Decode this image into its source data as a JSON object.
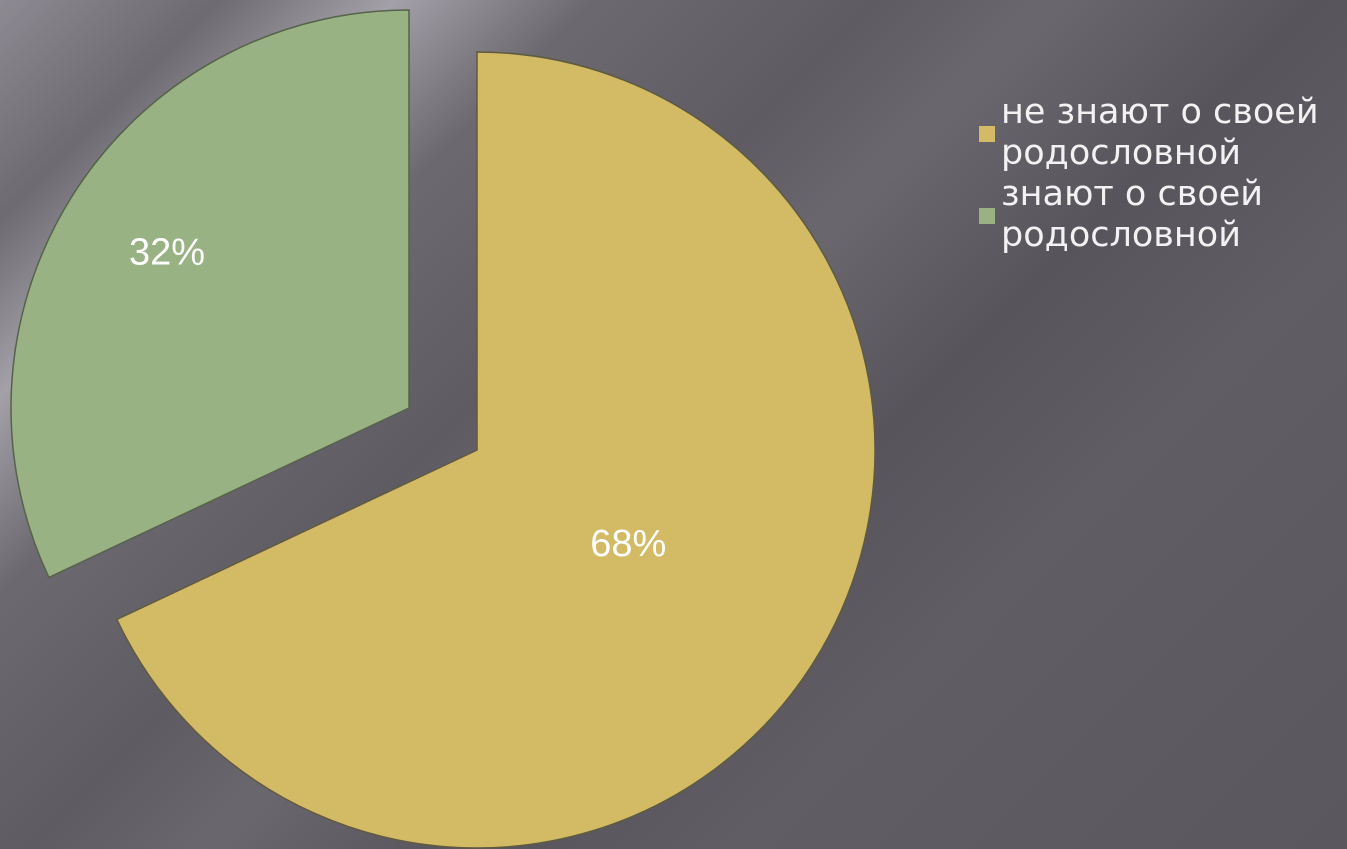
{
  "chart_data": {
    "type": "pie",
    "title": "",
    "slices": [
      {
        "label": "не знают о своей родословной",
        "value": 68,
        "display": "68%",
        "color": "#d2bb64",
        "exploded": false
      },
      {
        "label": "знают о своей родословной",
        "value": 32,
        "display": "32%",
        "color": "#99b284",
        "exploded": true
      }
    ],
    "legend_position": "right"
  },
  "legend": {
    "items": [
      {
        "label": "не знают о своей родословной",
        "color": "#d2bb64"
      },
      {
        "label": "знают о своей родословной",
        "color": "#99b284"
      }
    ]
  }
}
